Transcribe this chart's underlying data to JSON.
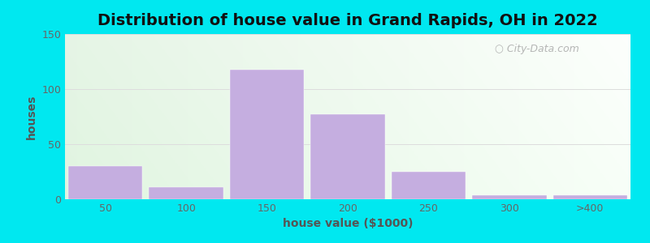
{
  "title": "Distribution of house value in Grand Rapids, OH in 2022",
  "xlabel": "house value ($1000)",
  "ylabel": "houses",
  "bar_labels": [
    "50",
    "100",
    "150",
    "200",
    "250",
    "300",
    ">400"
  ],
  "bar_values": [
    30,
    11,
    118,
    77,
    25,
    4,
    4
  ],
  "bar_color": "#c5aee0",
  "bar_edgecolor": "#c5aee0",
  "ylim": [
    0,
    150
  ],
  "yticks": [
    0,
    50,
    100,
    150
  ],
  "background_outer": "#00e8f0",
  "bg_topleft": [
    0.88,
    0.96,
    0.88,
    1.0
  ],
  "bg_topright": [
    0.94,
    0.99,
    0.94,
    1.0
  ],
  "bg_bottomleft": [
    0.88,
    0.96,
    0.88,
    1.0
  ],
  "bg_bottomright": [
    0.97,
    1.0,
    0.95,
    1.0
  ],
  "grid_color": "#dddddd",
  "title_fontsize": 14,
  "axis_label_fontsize": 10,
  "tick_fontsize": 9,
  "watermark_text": "City-Data.com",
  "watermark_color": "#aaaaaa"
}
